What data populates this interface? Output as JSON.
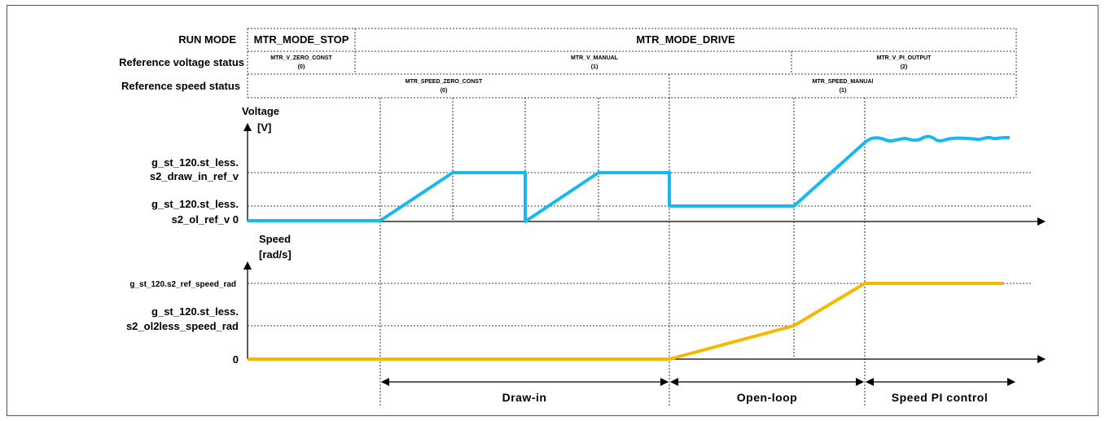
{
  "header_rows": {
    "run_mode_label": "RUN MODE",
    "voltage_status_label": "Reference voltage status",
    "speed_status_label": "Reference speed status",
    "run_mode_stop": "MTR_MODE_STOP",
    "run_mode_drive": "MTR_MODE_DRIVE",
    "v_zero_const": "MTR_V_ZERO_CONST",
    "v_zero_const_val": "(0)",
    "v_manual": "MTR_V_MANUAL",
    "v_manual_val": "(1)",
    "v_pi_output": "MTR_V_PI_OUTPUT",
    "v_pi_output_val": "(2)",
    "speed_zero_const": "MTR_SPEED_ZERO_CONST",
    "speed_zero_const_val": "(0)",
    "speed_manual": "MTR_SPEED_MANUAl",
    "speed_manual_val": "(1)"
  },
  "voltage_axis": {
    "title": "Voltage",
    "unit": "[V]",
    "draw_in_label_1": "g_st_120.st_less.",
    "draw_in_label_2": "s2_draw_in_ref_v",
    "ol_label_1": "g_st_120.st_less.",
    "ol_label_2": "s2_ol_ref_v 0"
  },
  "speed_axis": {
    "title": "Speed",
    "unit": "[rad/s]",
    "ref_speed_label": "g_st_120.s2_ref_speed_rad",
    "ol2less_label_1": "g_st_120.st_less.",
    "ol2less_label_2": "s2_ol2less_speed_rad",
    "zero_label": "0"
  },
  "phases": {
    "draw_in": "Draw-in",
    "open_loop": "Open-loop",
    "speed_pi": "Speed PI control"
  },
  "colors": {
    "voltage_trace": "#19b9f0",
    "speed_trace": "#f5b800"
  }
}
